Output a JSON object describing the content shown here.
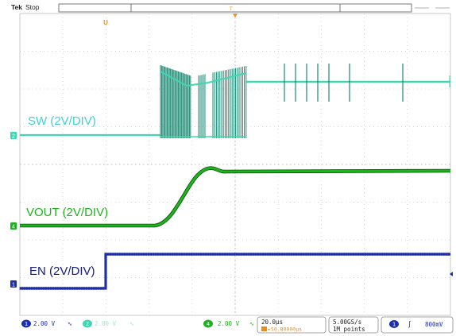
{
  "header": {
    "brand": "Tek",
    "status": "Stop"
  },
  "traces": {
    "sw": {
      "label": "SW (2V/DIV)",
      "color": "#40d6b0",
      "channel_marker": "2"
    },
    "vout": {
      "label": "VOUT (2V/DIV)",
      "color": "#1fb21f",
      "channel_marker": "4"
    },
    "en": {
      "label": "EN (2V/DIV)",
      "color": "#1e2fa8",
      "channel_marker": "1"
    }
  },
  "readouts": {
    "ch1_scale": "2.00 V",
    "ch2_scale": "2.00 V",
    "ch4_scale": "2.00 V",
    "ch1_num": "1",
    "ch2_num": "2",
    "ch4_num": "4",
    "timebase": "20.0µs",
    "trigger_pos": "▸50.80000µs",
    "sample_rate": "5.00GS/s",
    "record_length": "1M points",
    "trigger_channel": "1",
    "trigger_slope": "∫",
    "trigger_level": "800mV"
  },
  "markers": {
    "trigger": "T",
    "position_glyph": "U"
  },
  "colors": {
    "grid": "#c8c8c8",
    "ch1": "#1e2fa8",
    "ch2": "#40d6b0",
    "ch4": "#1fb21f",
    "trigger_orange": "#f08a1c",
    "readout_text": "#1e2fa8"
  }
}
